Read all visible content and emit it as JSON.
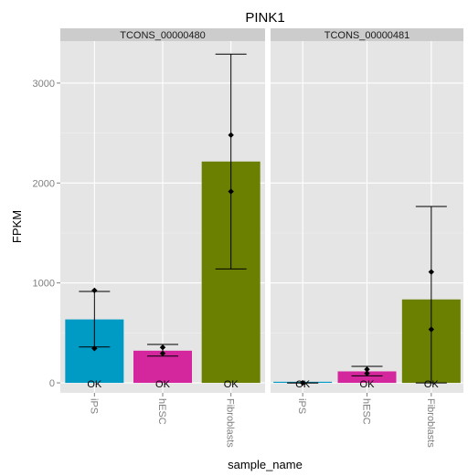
{
  "chart_data": {
    "type": "bar",
    "title": "PINK1",
    "xlabel": "sample_name",
    "ylabel": "FPKM",
    "ylim": [
      -100,
      3420
    ],
    "yticks": [
      0,
      1000,
      2000,
      3000
    ],
    "categories": [
      "iPS",
      "hESC",
      "Fibroblasts"
    ],
    "colors": {
      "iPS": "#009bc4",
      "hESC": "#d4279e",
      "Fibroblasts": "#6b7f00",
      "panel_bg": "#e5e5e5",
      "strip_bg": "#cccccc",
      "grid_major": "#ffffff",
      "grid_minor": "#f2f2f2"
    },
    "grid": true,
    "panels": [
      {
        "label": "TCONS_00000480",
        "bars": [
          {
            "category": "iPS",
            "value": 635,
            "ci_low": 360,
            "ci_high": 915,
            "points": [
              925,
              345
            ],
            "status": "OK"
          },
          {
            "category": "hESC",
            "value": 322,
            "ci_low": 268,
            "ci_high": 385,
            "points": [
              355,
              295
            ],
            "status": "OK"
          },
          {
            "category": "Fibroblasts",
            "value": 2215,
            "ci_low": 1140,
            "ci_high": 3290,
            "points": [
              2480,
              1915
            ],
            "status": "OK"
          }
        ]
      },
      {
        "label": "TCONS_00000481",
        "bars": [
          {
            "category": "iPS",
            "value": 0,
            "ci_low": 0,
            "ci_high": 0,
            "points": [
              0
            ],
            "status": "OK"
          },
          {
            "category": "hESC",
            "value": 115,
            "ci_low": 70,
            "ci_high": 165,
            "points": [
              135,
              95
            ],
            "status": "OK"
          },
          {
            "category": "Fibroblasts",
            "value": 835,
            "ci_low": 0,
            "ci_high": 1765,
            "points": [
              1110,
              535
            ],
            "status": "OK"
          }
        ]
      }
    ]
  }
}
